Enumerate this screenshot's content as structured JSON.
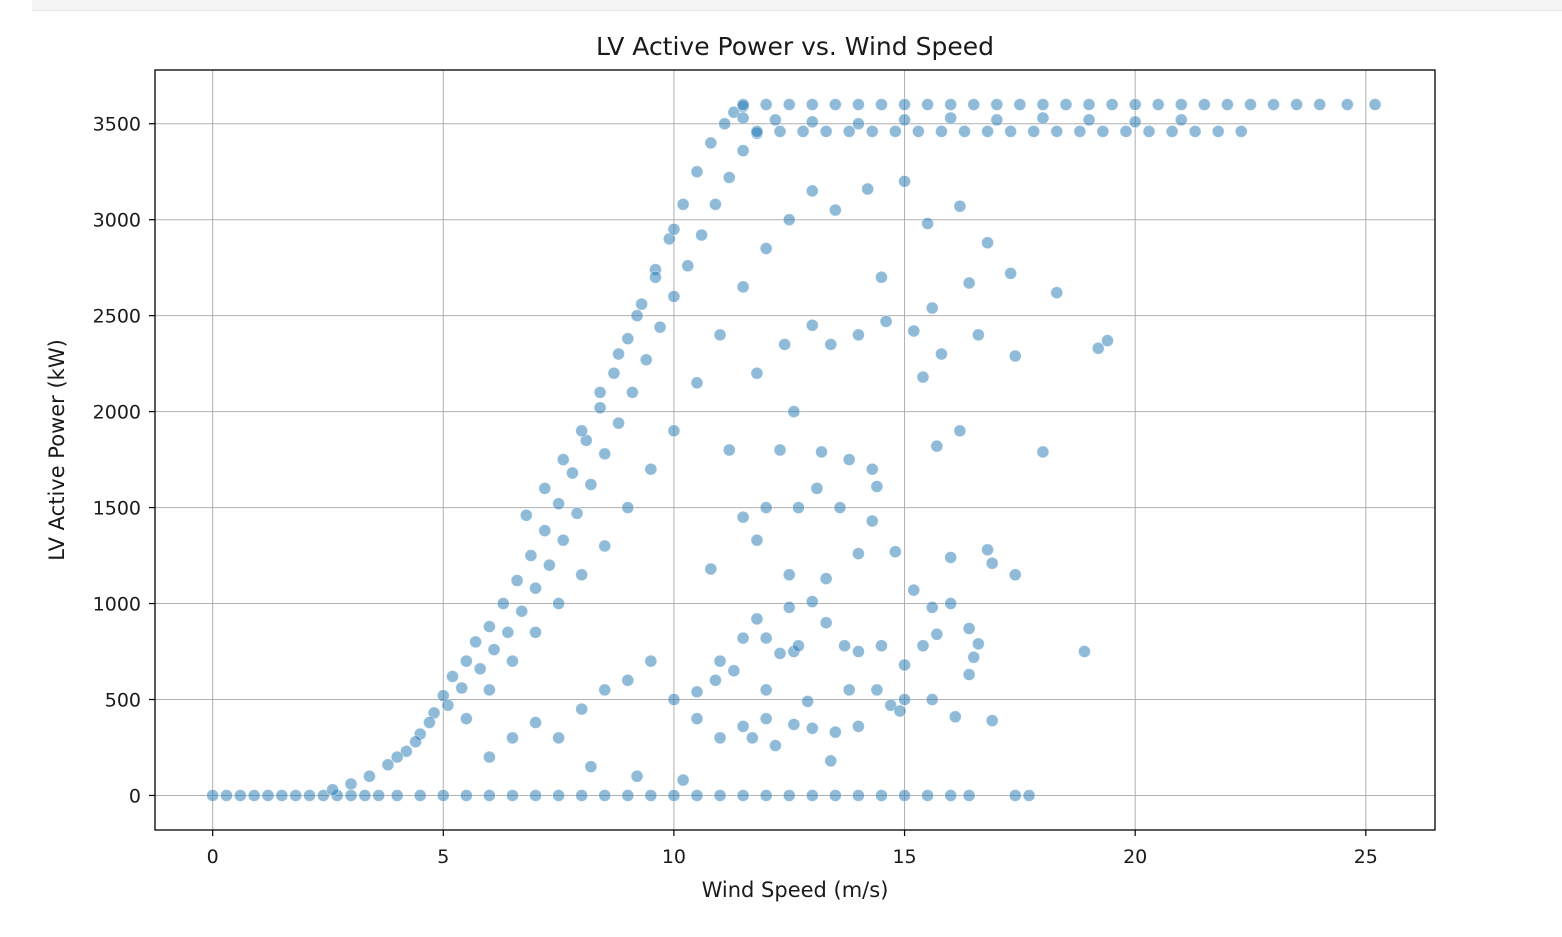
{
  "chart_data": {
    "type": "scatter",
    "title": "LV Active Power vs. Wind Speed",
    "xlabel": "Wind Speed (m/s)",
    "ylabel": "LV Active Power (kW)",
    "xlim": [
      -1.25,
      26.5
    ],
    "ylim": [
      -180,
      3780
    ],
    "xticks": [
      0,
      5,
      10,
      15,
      20,
      25
    ],
    "yticks": [
      0,
      500,
      1000,
      1500,
      2000,
      2500,
      3000,
      3500
    ],
    "grid": true,
    "color": "#1f77b4",
    "series": [
      {
        "points": [
          [
            0.0,
            0
          ],
          [
            0.3,
            0
          ],
          [
            0.6,
            0
          ],
          [
            0.9,
            0
          ],
          [
            1.2,
            0
          ],
          [
            1.5,
            0
          ],
          [
            1.8,
            0
          ],
          [
            2.1,
            0
          ],
          [
            2.4,
            0
          ],
          [
            2.7,
            0
          ],
          [
            3.0,
            0
          ],
          [
            3.3,
            0
          ],
          [
            3.6,
            0
          ],
          [
            4.0,
            0
          ],
          [
            4.5,
            0
          ],
          [
            5.0,
            0
          ],
          [
            5.5,
            0
          ],
          [
            6.0,
            0
          ],
          [
            6.5,
            0
          ],
          [
            7.0,
            0
          ],
          [
            7.5,
            0
          ],
          [
            8.0,
            0
          ],
          [
            8.5,
            0
          ],
          [
            9.0,
            0
          ],
          [
            9.5,
            0
          ],
          [
            10.0,
            0
          ],
          [
            10.5,
            0
          ],
          [
            11.0,
            0
          ],
          [
            11.5,
            0
          ],
          [
            12.0,
            0
          ],
          [
            12.5,
            0
          ],
          [
            13.0,
            0
          ],
          [
            13.5,
            0
          ],
          [
            14.0,
            0
          ],
          [
            14.5,
            0
          ],
          [
            15.0,
            0
          ],
          [
            15.5,
            0
          ],
          [
            16.0,
            0
          ],
          [
            16.4,
            0
          ],
          [
            17.4,
            0
          ],
          [
            17.7,
            0
          ],
          [
            2.6,
            30
          ],
          [
            3.0,
            60
          ],
          [
            3.4,
            100
          ],
          [
            3.8,
            160
          ],
          [
            4.2,
            230
          ],
          [
            4.5,
            320
          ],
          [
            4.8,
            430
          ],
          [
            5.0,
            520
          ],
          [
            5.2,
            620
          ],
          [
            5.5,
            700
          ],
          [
            5.7,
            800
          ],
          [
            6.0,
            880
          ],
          [
            6.3,
            1000
          ],
          [
            6.6,
            1120
          ],
          [
            6.9,
            1250
          ],
          [
            7.2,
            1380
          ],
          [
            7.5,
            1520
          ],
          [
            7.8,
            1680
          ],
          [
            8.1,
            1850
          ],
          [
            8.4,
            2020
          ],
          [
            8.7,
            2200
          ],
          [
            9.0,
            2380
          ],
          [
            9.3,
            2560
          ],
          [
            9.6,
            2740
          ],
          [
            9.9,
            2900
          ],
          [
            10.2,
            3080
          ],
          [
            10.5,
            3250
          ],
          [
            10.8,
            3400
          ],
          [
            11.1,
            3500
          ],
          [
            11.3,
            3560
          ],
          [
            11.5,
            3590
          ],
          [
            4.0,
            200
          ],
          [
            4.4,
            280
          ],
          [
            4.7,
            380
          ],
          [
            5.1,
            470
          ],
          [
            5.4,
            560
          ],
          [
            5.8,
            660
          ],
          [
            6.1,
            760
          ],
          [
            6.4,
            850
          ],
          [
            6.7,
            960
          ],
          [
            7.0,
            1080
          ],
          [
            7.3,
            1200
          ],
          [
            7.6,
            1330
          ],
          [
            7.9,
            1470
          ],
          [
            8.2,
            1620
          ],
          [
            8.5,
            1780
          ],
          [
            8.8,
            1940
          ],
          [
            9.1,
            2100
          ],
          [
            9.4,
            2270
          ],
          [
            9.7,
            2440
          ],
          [
            10.0,
            2600
          ],
          [
            10.3,
            2760
          ],
          [
            10.6,
            2920
          ],
          [
            10.9,
            3080
          ],
          [
            11.2,
            3220
          ],
          [
            11.5,
            3360
          ],
          [
            11.8,
            3450
          ],
          [
            5.5,
            400
          ],
          [
            6.0,
            550
          ],
          [
            6.5,
            700
          ],
          [
            7.0,
            850
          ],
          [
            7.5,
            1000
          ],
          [
            8.0,
            1150
          ],
          [
            8.5,
            1300
          ],
          [
            9.0,
            1500
          ],
          [
            9.5,
            1700
          ],
          [
            10.0,
            1900
          ],
          [
            10.5,
            2150
          ],
          [
            11.0,
            2400
          ],
          [
            11.5,
            2650
          ],
          [
            12.0,
            2850
          ],
          [
            12.5,
            3000
          ],
          [
            13.0,
            3150
          ],
          [
            6.8,
            1460
          ],
          [
            7.2,
            1600
          ],
          [
            7.6,
            1750
          ],
          [
            8.0,
            1900
          ],
          [
            8.4,
            2100
          ],
          [
            8.8,
            2300
          ],
          [
            9.2,
            2500
          ],
          [
            9.6,
            2700
          ],
          [
            10.0,
            2950
          ],
          [
            6.0,
            200
          ],
          [
            6.5,
            300
          ],
          [
            7.0,
            380
          ],
          [
            7.5,
            300
          ],
          [
            8.0,
            450
          ],
          [
            8.5,
            550
          ],
          [
            9.0,
            600
          ],
          [
            9.5,
            700
          ],
          [
            10.0,
            500
          ],
          [
            10.5,
            400
          ],
          [
            11.0,
            300
          ],
          [
            8.2,
            150
          ],
          [
            9.2,
            100
          ],
          [
            10.2,
            80
          ],
          [
            11.5,
            3600
          ],
          [
            12.0,
            3600
          ],
          [
            12.5,
            3600
          ],
          [
            13.0,
            3600
          ],
          [
            13.5,
            3600
          ],
          [
            14.0,
            3600
          ],
          [
            14.5,
            3600
          ],
          [
            15.0,
            3600
          ],
          [
            15.5,
            3600
          ],
          [
            16.0,
            3600
          ],
          [
            16.5,
            3600
          ],
          [
            17.0,
            3600
          ],
          [
            17.5,
            3600
          ],
          [
            18.0,
            3600
          ],
          [
            18.5,
            3600
          ],
          [
            19.0,
            3600
          ],
          [
            19.5,
            3600
          ],
          [
            20.0,
            3600
          ],
          [
            20.5,
            3600
          ],
          [
            21.0,
            3600
          ],
          [
            21.5,
            3600
          ],
          [
            22.0,
            3600
          ],
          [
            22.5,
            3600
          ],
          [
            23.0,
            3600
          ],
          [
            23.5,
            3600
          ],
          [
            24.0,
            3600
          ],
          [
            24.6,
            3600
          ],
          [
            25.2,
            3600
          ],
          [
            11.8,
            3460
          ],
          [
            12.3,
            3460
          ],
          [
            12.8,
            3460
          ],
          [
            13.3,
            3460
          ],
          [
            13.8,
            3460
          ],
          [
            14.3,
            3460
          ],
          [
            14.8,
            3460
          ],
          [
            15.3,
            3460
          ],
          [
            15.8,
            3460
          ],
          [
            16.3,
            3460
          ],
          [
            16.8,
            3460
          ],
          [
            17.3,
            3460
          ],
          [
            17.8,
            3460
          ],
          [
            18.3,
            3460
          ],
          [
            18.8,
            3460
          ],
          [
            19.3,
            3460
          ],
          [
            19.8,
            3460
          ],
          [
            20.3,
            3460
          ],
          [
            20.8,
            3460
          ],
          [
            21.3,
            3460
          ],
          [
            21.8,
            3460
          ],
          [
            22.3,
            3460
          ],
          [
            11.5,
            3530
          ],
          [
            12.2,
            3520
          ],
          [
            13.0,
            3510
          ],
          [
            14.0,
            3500
          ],
          [
            15.0,
            3520
          ],
          [
            16.0,
            3530
          ],
          [
            17.0,
            3520
          ],
          [
            18.0,
            3530
          ],
          [
            19.0,
            3520
          ],
          [
            20.0,
            3510
          ],
          [
            21.0,
            3520
          ],
          [
            13.5,
            3050
          ],
          [
            14.2,
            3160
          ],
          [
            15.0,
            3200
          ],
          [
            14.5,
            2700
          ],
          [
            15.6,
            2540
          ],
          [
            16.4,
            2670
          ],
          [
            16.8,
            2880
          ],
          [
            18.3,
            2620
          ],
          [
            17.4,
            2290
          ],
          [
            19.2,
            2330
          ],
          [
            19.4,
            2370
          ],
          [
            17.3,
            2720
          ],
          [
            16.2,
            3070
          ],
          [
            15.5,
            2980
          ],
          [
            16.2,
            1900
          ],
          [
            15.7,
            1820
          ],
          [
            18.0,
            1790
          ],
          [
            14.3,
            1700
          ],
          [
            13.2,
            1790
          ],
          [
            13.8,
            1750
          ],
          [
            14.4,
            1610
          ],
          [
            14.3,
            1430
          ],
          [
            14.8,
            1270
          ],
          [
            14.0,
            1260
          ],
          [
            16.0,
            1240
          ],
          [
            16.8,
            1280
          ],
          [
            17.4,
            1150
          ],
          [
            16.9,
            1210
          ],
          [
            13.3,
            1130
          ],
          [
            12.5,
            1150
          ],
          [
            11.8,
            1330
          ],
          [
            10.8,
            1180
          ],
          [
            11.5,
            1450
          ],
          [
            12.0,
            1500
          ],
          [
            12.7,
            1500
          ],
          [
            13.1,
            1600
          ],
          [
            13.6,
            1500
          ],
          [
            12.6,
            2000
          ],
          [
            12.3,
            1800
          ],
          [
            11.2,
            1800
          ],
          [
            11.8,
            2200
          ],
          [
            12.4,
            2350
          ],
          [
            13.0,
            2450
          ],
          [
            13.4,
            2350
          ],
          [
            14.0,
            2400
          ],
          [
            14.6,
            2470
          ],
          [
            15.2,
            2420
          ],
          [
            15.8,
            2300
          ],
          [
            16.6,
            2400
          ],
          [
            15.4,
            2180
          ],
          [
            15.2,
            1070
          ],
          [
            15.6,
            980
          ],
          [
            16.0,
            1000
          ],
          [
            15.7,
            840
          ],
          [
            16.5,
            720
          ],
          [
            16.4,
            630
          ],
          [
            16.6,
            790
          ],
          [
            16.4,
            870
          ],
          [
            16.1,
            410
          ],
          [
            16.9,
            390
          ],
          [
            18.9,
            750
          ],
          [
            14.0,
            750
          ],
          [
            14.5,
            780
          ],
          [
            13.8,
            550
          ],
          [
            14.4,
            550
          ],
          [
            15.0,
            680
          ],
          [
            15.4,
            780
          ],
          [
            15.0,
            500
          ],
          [
            15.6,
            500
          ],
          [
            14.7,
            470
          ],
          [
            14.0,
            360
          ],
          [
            13.5,
            330
          ],
          [
            13.0,
            350
          ],
          [
            12.6,
            370
          ],
          [
            12.0,
            400
          ],
          [
            11.5,
            360
          ],
          [
            12.2,
            260
          ],
          [
            11.7,
            300
          ],
          [
            13.4,
            180
          ],
          [
            14.9,
            440
          ],
          [
            12.6,
            750
          ],
          [
            12.0,
            820
          ],
          [
            12.5,
            980
          ],
          [
            13.0,
            1010
          ],
          [
            12.3,
            740
          ],
          [
            11.5,
            820
          ],
          [
            11.0,
            700
          ],
          [
            11.3,
            650
          ],
          [
            10.5,
            540
          ],
          [
            10.9,
            600
          ],
          [
            12.0,
            550
          ],
          [
            12.9,
            490
          ],
          [
            13.3,
            900
          ],
          [
            11.8,
            920
          ],
          [
            12.7,
            780
          ],
          [
            13.7,
            780
          ]
        ]
      }
    ]
  }
}
